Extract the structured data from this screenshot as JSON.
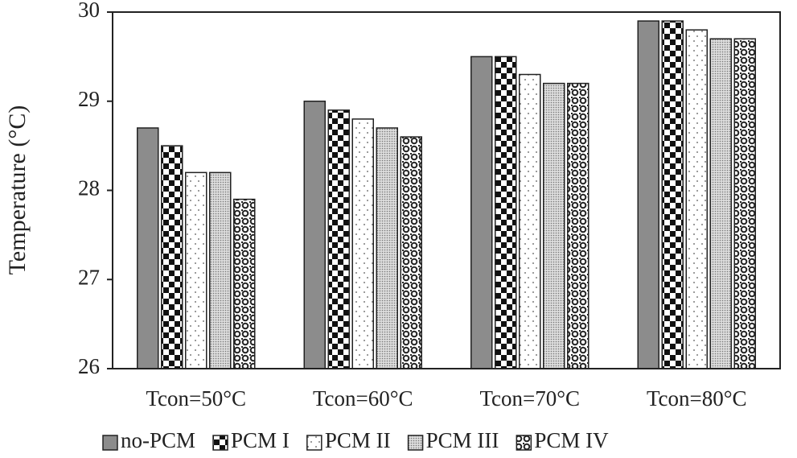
{
  "chart_data": {
    "type": "bar",
    "y_label": "Temperature (°C)",
    "categories": [
      "Tcon=50°C",
      "Tcon=60°C",
      "Tcon=70°C",
      "Tcon=80°C"
    ],
    "series": [
      {
        "name": "no-PCM",
        "color": "#8c8c8c",
        "values": [
          28.7,
          29.0,
          29.5,
          29.9
        ]
      },
      {
        "name": "PCM I",
        "color": "#111111",
        "values": [
          28.5,
          28.9,
          29.5,
          29.9
        ]
      },
      {
        "name": "PCM II",
        "color": "#555555",
        "values": [
          28.2,
          28.8,
          29.3,
          29.8
        ]
      },
      {
        "name": "PCM III",
        "color": "#777777",
        "values": [
          28.2,
          28.7,
          29.2,
          29.7
        ]
      },
      {
        "name": "PCM IV",
        "color": "#222222",
        "values": [
          27.9,
          28.6,
          29.2,
          29.7
        ]
      }
    ],
    "ylim": [
      26,
      30
    ],
    "yticks": [
      26,
      27,
      28,
      29,
      30
    ],
    "grid": false,
    "legend": "bottom"
  }
}
